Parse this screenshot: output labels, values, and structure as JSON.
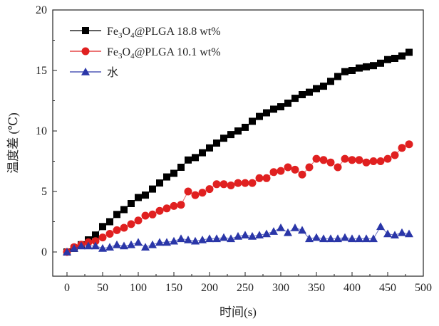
{
  "chart_data": {
    "type": "line",
    "title": "",
    "xlabel": "时间(s)",
    "ylabel": "温度差 (℃)",
    "xlim": [
      -20,
      500
    ],
    "ylim": [
      -2,
      20
    ],
    "xticks": [
      0,
      50,
      100,
      150,
      200,
      250,
      300,
      350,
      400,
      450,
      500
    ],
    "yticks": [
      0,
      5,
      10,
      15,
      20
    ],
    "grid": false,
    "legend_position": "top-left",
    "legend_entries": [
      {
        "prefix": "Fe",
        "sub1": "3",
        "mid": "O",
        "sub2": "4",
        "suffix": "@PLGA 18.8 wt%"
      },
      {
        "prefix": "Fe",
        "sub1": "3",
        "mid": "O",
        "sub2": "4",
        "suffix": "@PLGA 10.1 wt%"
      },
      {
        "prefix": "水",
        "sub1": "",
        "mid": "",
        "sub2": "",
        "suffix": ""
      }
    ],
    "series": [
      {
        "name": "Fe3O4@PLGA 18.8 wt%",
        "marker": "square",
        "color": "#000000",
        "x": [
          0,
          10,
          20,
          30,
          40,
          50,
          60,
          70,
          80,
          90,
          100,
          110,
          120,
          130,
          140,
          150,
          160,
          170,
          180,
          190,
          200,
          210,
          220,
          230,
          240,
          250,
          260,
          270,
          280,
          290,
          300,
          310,
          320,
          330,
          340,
          350,
          360,
          370,
          380,
          390,
          400,
          410,
          420,
          430,
          440,
          450,
          460,
          470,
          480
        ],
        "y": [
          0,
          0.3,
          0.6,
          1.0,
          1.4,
          2.1,
          2.5,
          3.1,
          3.5,
          4.0,
          4.5,
          4.7,
          5.2,
          5.7,
          6.2,
          6.5,
          7.0,
          7.6,
          7.8,
          8.2,
          8.6,
          9.0,
          9.4,
          9.7,
          10.0,
          10.3,
          10.8,
          11.2,
          11.5,
          11.8,
          12.0,
          12.3,
          12.7,
          13.0,
          13.2,
          13.5,
          13.7,
          14.1,
          14.5,
          14.9,
          15.0,
          15.2,
          15.3,
          15.4,
          15.6,
          15.9,
          16.0,
          16.2,
          16.5
        ]
      },
      {
        "name": "Fe3O4@PLGA 10.1 wt%",
        "marker": "circle",
        "color": "#e02020",
        "x": [
          0,
          10,
          20,
          30,
          40,
          50,
          60,
          70,
          80,
          90,
          100,
          110,
          120,
          130,
          140,
          150,
          160,
          170,
          180,
          190,
          200,
          210,
          220,
          230,
          240,
          250,
          260,
          270,
          280,
          290,
          300,
          310,
          320,
          330,
          340,
          350,
          360,
          370,
          380,
          390,
          400,
          410,
          420,
          430,
          440,
          450,
          460,
          470,
          480
        ],
        "y": [
          0,
          0.4,
          0.6,
          0.8,
          0.9,
          1.2,
          1.5,
          1.8,
          2.0,
          2.3,
          2.6,
          3.0,
          3.1,
          3.4,
          3.6,
          3.8,
          3.9,
          5.0,
          4.7,
          4.9,
          5.2,
          5.6,
          5.6,
          5.5,
          5.7,
          5.7,
          5.7,
          6.1,
          6.1,
          6.6,
          6.7,
          7.0,
          6.8,
          6.4,
          7.0,
          7.7,
          7.6,
          7.4,
          7.0,
          7.7,
          7.6,
          7.6,
          7.4,
          7.5,
          7.5,
          7.7,
          8.0,
          8.6,
          8.9
        ]
      },
      {
        "name": "水",
        "marker": "triangle",
        "color": "#2a36a8",
        "x": [
          0,
          10,
          20,
          30,
          40,
          50,
          60,
          70,
          80,
          90,
          100,
          110,
          120,
          130,
          140,
          150,
          160,
          170,
          180,
          190,
          200,
          210,
          220,
          230,
          240,
          250,
          260,
          270,
          280,
          290,
          300,
          310,
          320,
          330,
          340,
          350,
          360,
          370,
          380,
          390,
          400,
          410,
          420,
          430,
          440,
          450,
          460,
          470,
          480
        ],
        "y": [
          0,
          0.3,
          0.5,
          0.5,
          0.5,
          0.3,
          0.4,
          0.6,
          0.5,
          0.6,
          0.8,
          0.4,
          0.6,
          0.8,
          0.8,
          0.9,
          1.1,
          1.0,
          0.9,
          1.0,
          1.1,
          1.1,
          1.2,
          1.1,
          1.3,
          1.4,
          1.3,
          1.4,
          1.5,
          1.7,
          2.0,
          1.6,
          2.0,
          1.8,
          1.1,
          1.2,
          1.1,
          1.1,
          1.1,
          1.2,
          1.1,
          1.1,
          1.1,
          1.1,
          2.1,
          1.5,
          1.4,
          1.6,
          1.5
        ]
      }
    ]
  }
}
